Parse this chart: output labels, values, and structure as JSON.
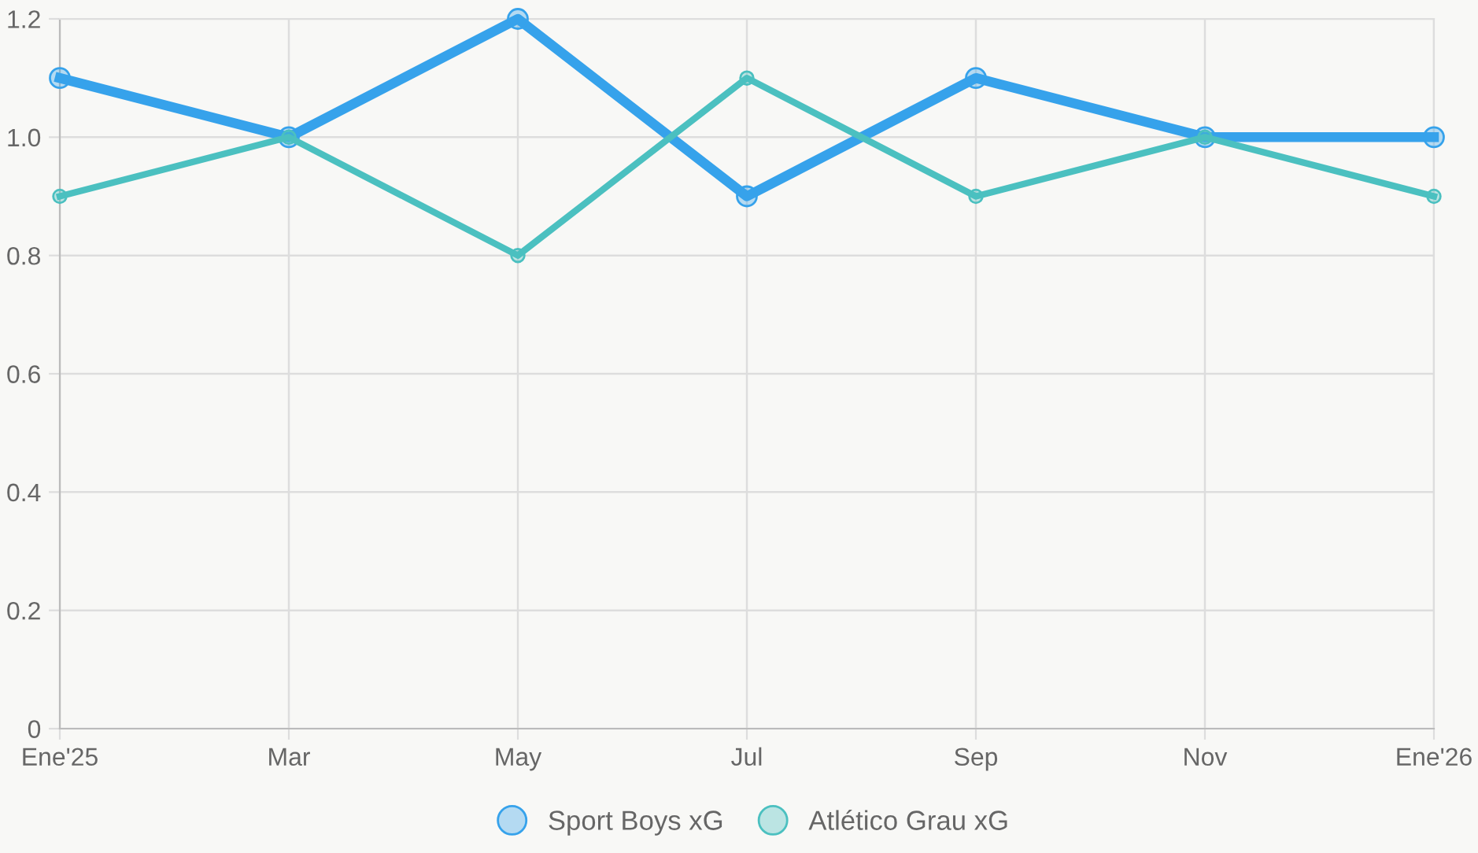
{
  "chart_data": {
    "type": "line",
    "categories": [
      "Ene'25",
      "Mar",
      "May",
      "Jul",
      "Sep",
      "Nov",
      "Ene'26"
    ],
    "series": [
      {
        "name": "Sport Boys xG",
        "color": "#36a2eb",
        "values": [
          1.1,
          1.0,
          1.2,
          0.9,
          1.1,
          1.0,
          1.0
        ]
      },
      {
        "name": "Atlético Grau xG",
        "color": "#4bc0c0",
        "values": [
          0.9,
          1.0,
          0.8,
          1.1,
          0.9,
          1.0,
          0.9
        ]
      }
    ],
    "ylim": [
      0,
      1.2
    ],
    "yticks": [
      0,
      {
        "value": 0.2,
        "label": "0.2"
      },
      {
        "value": 0.4,
        "label": "0.4"
      },
      {
        "value": 0.6,
        "label": "0.6"
      },
      {
        "value": 0.8,
        "label": "0.8"
      },
      {
        "value": 1.0,
        "label": "1.0"
      },
      {
        "value": 1.2,
        "label": "1.2"
      }
    ],
    "grid": true,
    "legend": "bottom",
    "marker": "circle",
    "line_style": "solid"
  }
}
